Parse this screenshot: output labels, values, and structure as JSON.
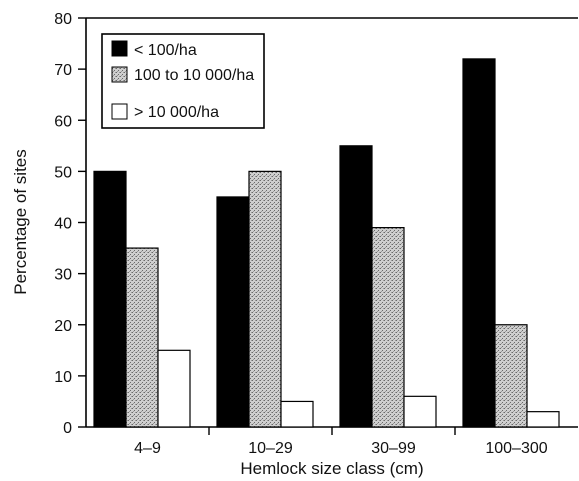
{
  "chart_data": {
    "type": "bar",
    "title": "",
    "xlabel": "Hemlock size class (cm)",
    "ylabel": "Percentage of sites",
    "ylim": [
      0,
      80
    ],
    "yticks": [
      0,
      10,
      20,
      30,
      40,
      50,
      60,
      70,
      80
    ],
    "categories": [
      "4–9",
      "10–29",
      "30–99",
      "100–300"
    ],
    "series": [
      {
        "name": "< 100/ha",
        "values": [
          50,
          45,
          55,
          72
        ],
        "fill": "#000000"
      },
      {
        "name": "100 to 10 000/ha",
        "values": [
          35,
          50,
          39,
          20
        ],
        "fill": "stipple"
      },
      {
        "name": "> 10 000/ha",
        "values": [
          15,
          5,
          6,
          3
        ],
        "fill": "#ffffff"
      }
    ],
    "legend": "top-left",
    "grid": false
  }
}
